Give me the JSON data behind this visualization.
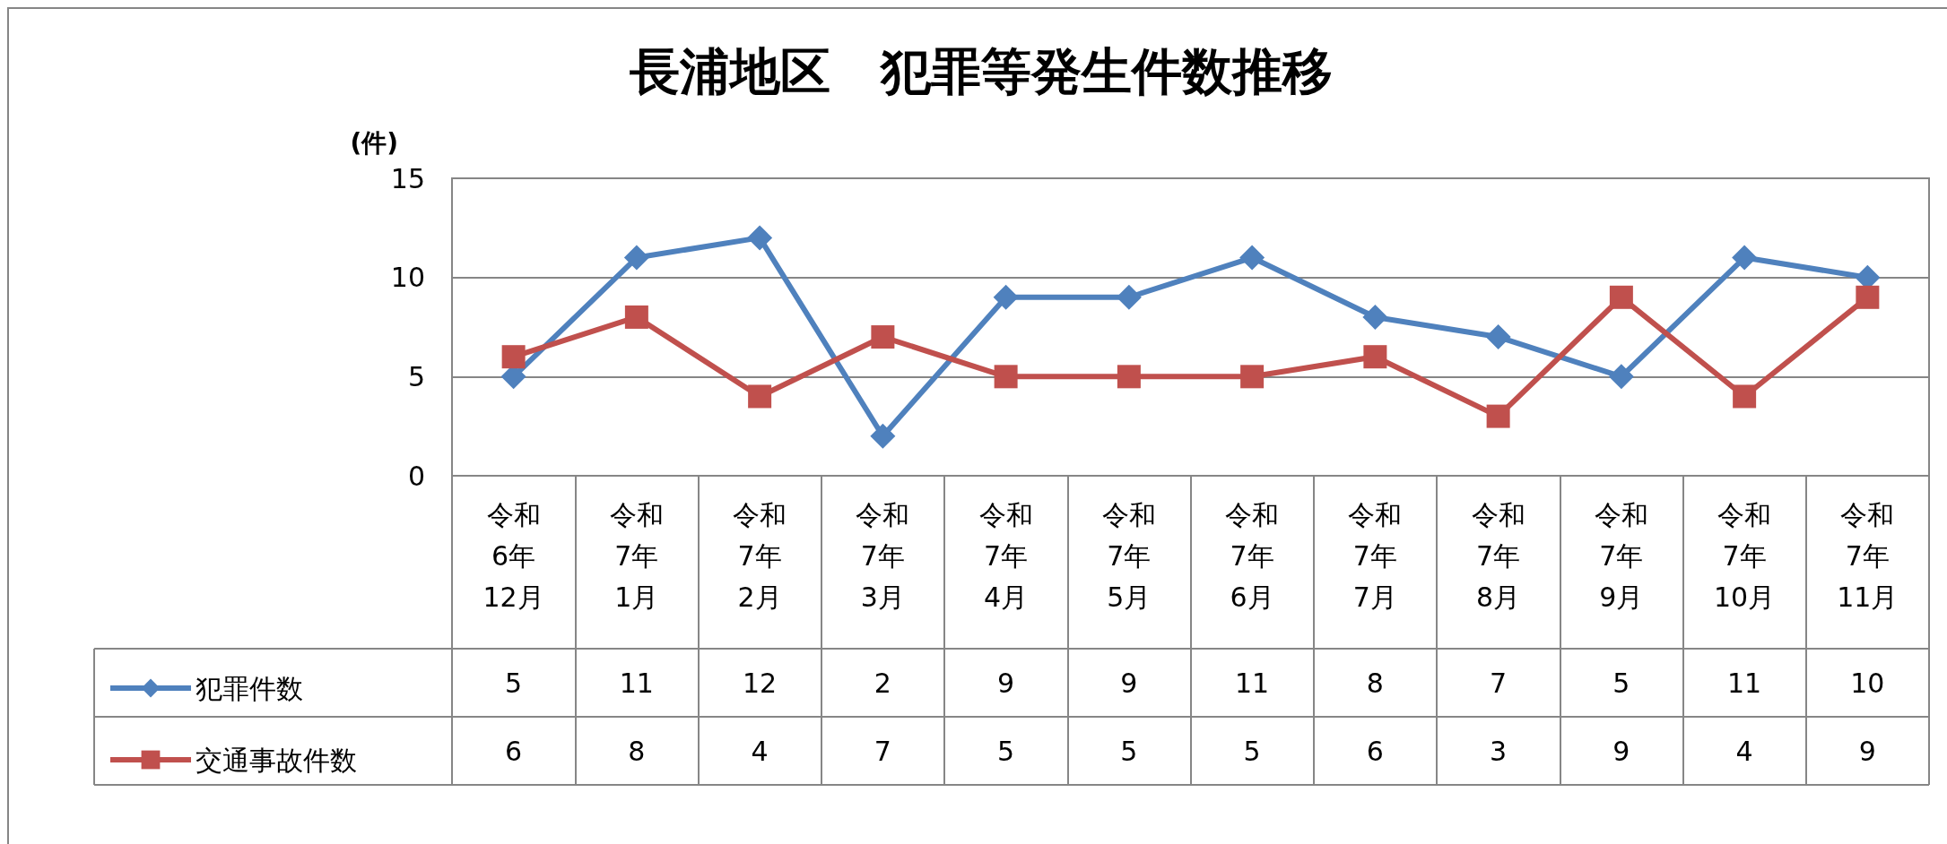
{
  "chart_data": {
    "type": "line",
    "title": "長浦地区　犯罪等発生件数推移",
    "ylabel": "(件)",
    "categories": [
      "令和\n6年\n12月",
      "令和\n7年\n1月",
      "令和\n7年\n2月",
      "令和\n7年\n3月",
      "令和\n7年\n4月",
      "令和\n7年\n5月",
      "令和\n7年\n6月",
      "令和\n7年\n7月",
      "令和\n7年\n8月",
      "令和\n7年\n9月",
      "令和\n7年\n10月",
      "令和\n7年\n11月"
    ],
    "series": [
      {
        "name": "犯罪件数",
        "color": "#4f81bd",
        "marker": "diamond",
        "values": [
          5,
          11,
          12,
          2,
          9,
          9,
          11,
          8,
          7,
          5,
          11,
          10
        ]
      },
      {
        "name": "交通事故件数",
        "color": "#c0504d",
        "marker": "square",
        "values": [
          6,
          8,
          4,
          7,
          5,
          5,
          5,
          6,
          3,
          9,
          4,
          9
        ]
      }
    ],
    "ylim": [
      0,
      15
    ],
    "yticks": [
      0,
      5,
      10,
      15
    ],
    "grid": "y",
    "legend": "bottom left",
    "data_labels": true
  }
}
